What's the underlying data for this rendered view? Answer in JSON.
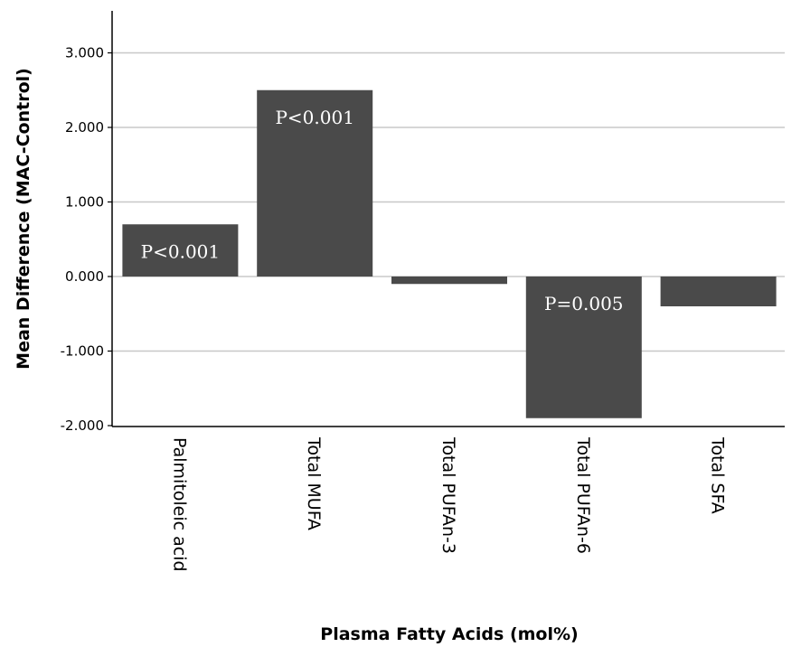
{
  "chart_data": {
    "type": "bar",
    "title": "",
    "xlabel": "Plasma Fatty Acids (mol%)",
    "ylabel": "Mean Difference (MAC-Control)",
    "ylim": [
      -2.0,
      3.3
    ],
    "yticks": [
      "3.000",
      "2.000",
      "1.000",
      "0.000",
      "-1.000",
      "-2.000"
    ],
    "ytick_values": [
      3,
      2,
      1,
      0,
      -1,
      -2
    ],
    "grid": true,
    "categories": [
      "Palmitoleic acid",
      "Total MUFA",
      "Total PUFAn-3",
      "Total PUFAn-6",
      "Total SFA"
    ],
    "values": [
      0.7,
      2.5,
      -0.1,
      -1.9,
      -0.4
    ],
    "bar_labels": [
      "P<0.001",
      "P<0.001",
      "",
      "P=0.005",
      ""
    ],
    "bar_color": "#4a4a4a",
    "grid_color": "#c8c8c8"
  }
}
